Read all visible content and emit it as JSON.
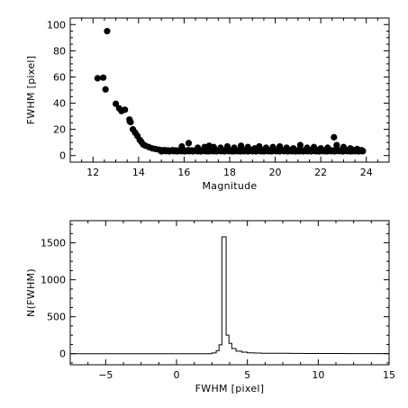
{
  "chart_data": [
    {
      "type": "scatter",
      "title": "",
      "xlabel": "Magnitude",
      "ylabel": "FWHM [pixel]",
      "xlim": [
        11,
        25
      ],
      "ylim": [
        -5,
        105
      ],
      "xticks": [
        12,
        14,
        16,
        18,
        20,
        22,
        24
      ],
      "yticks": [
        0,
        20,
        40,
        60,
        80,
        100
      ],
      "marker": "filled-circle",
      "color": "#000000",
      "points": [
        [
          12.2,
          59
        ],
        [
          12.45,
          59.5
        ],
        [
          12.55,
          50.5
        ],
        [
          12.62,
          95
        ],
        [
          13.0,
          39.5
        ],
        [
          13.15,
          36
        ],
        [
          13.25,
          34
        ],
        [
          13.4,
          35
        ],
        [
          13.6,
          27.5
        ],
        [
          13.62,
          26
        ],
        [
          13.65,
          25.5
        ],
        [
          13.75,
          20
        ],
        [
          13.85,
          17.5
        ],
        [
          13.95,
          15
        ],
        [
          14.05,
          12
        ],
        [
          14.12,
          10.5
        ],
        [
          14.2,
          8.5
        ],
        [
          14.3,
          7.5
        ],
        [
          14.45,
          6.5
        ],
        [
          14.6,
          5.5
        ],
        [
          14.75,
          5
        ],
        [
          14.9,
          4.5
        ],
        [
          15.05,
          4
        ],
        [
          15.2,
          3.8
        ],
        [
          15.4,
          3.6
        ],
        [
          15.6,
          3.5
        ],
        [
          15.8,
          3.5
        ],
        [
          16.0,
          3.5
        ],
        [
          16.2,
          3.4
        ],
        [
          16.4,
          3.5
        ],
        [
          16.6,
          3.4
        ],
        [
          16.8,
          3.5
        ],
        [
          17.0,
          3.4
        ],
        [
          17.2,
          3.5
        ],
        [
          17.4,
          3.4
        ],
        [
          17.6,
          3.5
        ],
        [
          17.8,
          3.4
        ],
        [
          18.0,
          3.5
        ],
        [
          18.2,
          3.4
        ],
        [
          18.4,
          3.5
        ],
        [
          18.6,
          3.4
        ],
        [
          18.8,
          3.5
        ],
        [
          19.0,
          3.4
        ],
        [
          19.2,
          3.5
        ],
        [
          19.4,
          3.4
        ],
        [
          19.6,
          3.5
        ],
        [
          19.8,
          3.4
        ],
        [
          20.0,
          3.5
        ],
        [
          20.2,
          3.4
        ],
        [
          20.4,
          3.5
        ],
        [
          20.6,
          3.4
        ],
        [
          20.8,
          3.5
        ],
        [
          21.0,
          3.4
        ],
        [
          21.2,
          3.5
        ],
        [
          21.4,
          3.4
        ],
        [
          21.6,
          3.5
        ],
        [
          21.8,
          3.4
        ],
        [
          22.0,
          3.5
        ],
        [
          22.2,
          3.4
        ],
        [
          22.4,
          3.5
        ],
        [
          22.6,
          3.4
        ],
        [
          22.8,
          3.5
        ],
        [
          23.0,
          3.4
        ],
        [
          23.2,
          3.5
        ],
        [
          23.4,
          3.4
        ],
        [
          23.6,
          3.5
        ],
        [
          23.8,
          3.4
        ],
        [
          15.9,
          7
        ],
        [
          16.2,
          9.5
        ],
        [
          16.6,
          6
        ],
        [
          16.9,
          6.5
        ],
        [
          17.1,
          7.5
        ],
        [
          17.3,
          6.5
        ],
        [
          17.6,
          6
        ],
        [
          17.9,
          7
        ],
        [
          18.2,
          6
        ],
        [
          18.5,
          7.5
        ],
        [
          18.8,
          6.5
        ],
        [
          19.1,
          5.5
        ],
        [
          19.3,
          7
        ],
        [
          19.6,
          6
        ],
        [
          19.9,
          6.5
        ],
        [
          20.2,
          7
        ],
        [
          20.5,
          6
        ],
        [
          20.8,
          5.5
        ],
        [
          21.1,
          8
        ],
        [
          21.4,
          6
        ],
        [
          21.7,
          6.5
        ],
        [
          22.0,
          5.5
        ],
        [
          22.3,
          6
        ],
        [
          22.58,
          14
        ],
        [
          22.7,
          8
        ],
        [
          23.0,
          6.5
        ],
        [
          23.3,
          5.5
        ],
        [
          23.6,
          5
        ]
      ]
    },
    {
      "type": "histogram",
      "title": "",
      "xlabel": "FWHM [pixel]",
      "ylabel": "N(FWHM)",
      "xlim": [
        -7.5,
        15
      ],
      "ylim": [
        -150,
        1800
      ],
      "xticks": [
        -5,
        0,
        5,
        10,
        15
      ],
      "yticks": [
        0,
        500,
        1000,
        1500
      ],
      "color": "#000000",
      "steps": [
        [
          -7.5,
          0
        ],
        [
          2.0,
          0
        ],
        [
          2.5,
          10
        ],
        [
          2.8,
          40
        ],
        [
          3.0,
          120
        ],
        [
          3.2,
          1580
        ],
        [
          3.5,
          250
        ],
        [
          3.7,
          140
        ],
        [
          3.9,
          70
        ],
        [
          4.2,
          35
        ],
        [
          4.6,
          20
        ],
        [
          5.0,
          12
        ],
        [
          5.5,
          8
        ],
        [
          6.0,
          6
        ],
        [
          7.0,
          5
        ],
        [
          8.0,
          4
        ],
        [
          9.0,
          3
        ],
        [
          10.0,
          2
        ],
        [
          11.0,
          2
        ],
        [
          12.0,
          1
        ],
        [
          14.0,
          1
        ],
        [
          15.0,
          1
        ]
      ]
    }
  ]
}
